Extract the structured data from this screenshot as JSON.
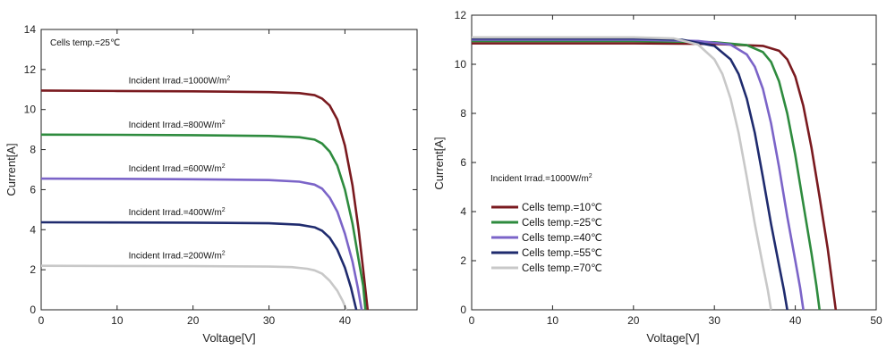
{
  "chart_data": [
    {
      "type": "line",
      "xlabel": "Voltage[V]",
      "ylabel": "Current[A]",
      "xlim": [
        0,
        49.5
      ],
      "ylim": [
        0,
        14
      ],
      "xticks": [
        0,
        10,
        20,
        30,
        40
      ],
      "yticks": [
        0,
        2,
        4,
        6,
        8,
        10,
        12,
        14
      ],
      "annotation": "Cells temp.=25℃",
      "series": [
        {
          "name": "Incident Irrad.=1000W/m",
          "sup": "2",
          "color": "#7a1a1f",
          "points": [
            [
              0,
              10.95
            ],
            [
              10,
              10.93
            ],
            [
              20,
              10.91
            ],
            [
              30,
              10.87
            ],
            [
              34,
              10.82
            ],
            [
              36,
              10.72
            ],
            [
              37,
              10.55
            ],
            [
              38,
              10.2
            ],
            [
              39,
              9.5
            ],
            [
              40,
              8.2
            ],
            [
              41,
              6.2
            ],
            [
              41.8,
              4.0
            ],
            [
              42.4,
              2.0
            ],
            [
              43,
              0
            ]
          ]
        },
        {
          "name": "Incident Irrad.=800W/m",
          "sup": "2",
          "color": "#2e8b3e",
          "points": [
            [
              0,
              8.75
            ],
            [
              10,
              8.74
            ],
            [
              20,
              8.72
            ],
            [
              30,
              8.68
            ],
            [
              34,
              8.62
            ],
            [
              36,
              8.5
            ],
            [
              37,
              8.3
            ],
            [
              38,
              7.9
            ],
            [
              39,
              7.2
            ],
            [
              40,
              6.0
            ],
            [
              41,
              4.3
            ],
            [
              41.8,
              2.5
            ],
            [
              42.4,
              1.2
            ],
            [
              42.7,
              0
            ]
          ]
        },
        {
          "name": "Incident Irrad.=600W/m",
          "sup": "2",
          "color": "#7b64c8",
          "points": [
            [
              0,
              6.55
            ],
            [
              10,
              6.54
            ],
            [
              20,
              6.52
            ],
            [
              30,
              6.48
            ],
            [
              34,
              6.4
            ],
            [
              36,
              6.25
            ],
            [
              37,
              6.05
            ],
            [
              38,
              5.6
            ],
            [
              39,
              4.9
            ],
            [
              40,
              3.8
            ],
            [
              41,
              2.4
            ],
            [
              41.7,
              1.1
            ],
            [
              42.2,
              0
            ]
          ]
        },
        {
          "name": "Incident Irrad.=400W/m",
          "sup": "2",
          "color": "#1f2b6e",
          "points": [
            [
              0,
              4.37
            ],
            [
              10,
              4.36
            ],
            [
              20,
              4.35
            ],
            [
              30,
              4.32
            ],
            [
              34,
              4.25
            ],
            [
              36,
              4.12
            ],
            [
              37,
              3.95
            ],
            [
              38,
              3.6
            ],
            [
              39,
              3.0
            ],
            [
              40,
              2.1
            ],
            [
              40.8,
              1.1
            ],
            [
              41.5,
              0
            ]
          ]
        },
        {
          "name": "Incident Irrad.=200W/m",
          "sup": "2",
          "color": "#c8c8c8",
          "points": [
            [
              0,
              2.2
            ],
            [
              10,
              2.19
            ],
            [
              20,
              2.18
            ],
            [
              30,
              2.16
            ],
            [
              33,
              2.13
            ],
            [
              35,
              2.05
            ],
            [
              36,
              1.97
            ],
            [
              37,
              1.8
            ],
            [
              38,
              1.45
            ],
            [
              39,
              0.95
            ],
            [
              39.7,
              0.45
            ],
            [
              40.2,
              0
            ]
          ]
        }
      ]
    },
    {
      "type": "line",
      "xlabel": "Voltage[V]",
      "ylabel": "Current[A]",
      "xlim": [
        0,
        50
      ],
      "ylim": [
        0,
        12
      ],
      "xticks": [
        0,
        10,
        20,
        30,
        40,
        50
      ],
      "yticks": [
        0,
        2,
        4,
        6,
        8,
        10,
        12
      ],
      "annotation": "Incident Irrad.=1000W/m",
      "annotation_sup": "2",
      "legend_position": "lower-left",
      "series": [
        {
          "name": "Cells temp.=10℃",
          "color": "#7a1a1f",
          "points": [
            [
              0,
              10.85
            ],
            [
              20,
              10.85
            ],
            [
              30,
              10.83
            ],
            [
              36,
              10.75
            ],
            [
              38,
              10.55
            ],
            [
              39,
              10.2
            ],
            [
              40,
              9.5
            ],
            [
              41,
              8.3
            ],
            [
              42,
              6.6
            ],
            [
              43,
              4.6
            ],
            [
              44,
              2.5
            ],
            [
              44.6,
              1.0
            ],
            [
              45,
              0
            ]
          ]
        },
        {
          "name": "Cells temp.=25℃",
          "color": "#2e8b3e",
          "points": [
            [
              0,
              10.95
            ],
            [
              20,
              10.95
            ],
            [
              30,
              10.9
            ],
            [
              34,
              10.78
            ],
            [
              36,
              10.5
            ],
            [
              37,
              10.1
            ],
            [
              38,
              9.3
            ],
            [
              39,
              8.0
            ],
            [
              40,
              6.3
            ],
            [
              41,
              4.3
            ],
            [
              42,
              2.3
            ],
            [
              42.6,
              1.0
            ],
            [
              43,
              0
            ]
          ]
        },
        {
          "name": "Cells temp.=40℃",
          "color": "#7b64c8",
          "points": [
            [
              0,
              11.0
            ],
            [
              20,
              11.0
            ],
            [
              28,
              10.95
            ],
            [
              32,
              10.8
            ],
            [
              34,
              10.4
            ],
            [
              35,
              9.9
            ],
            [
              36,
              9.0
            ],
            [
              37,
              7.6
            ],
            [
              38,
              5.8
            ],
            [
              39,
              3.8
            ],
            [
              40,
              2.0
            ],
            [
              40.6,
              0.9
            ],
            [
              41,
              0
            ]
          ]
        },
        {
          "name": "Cells temp.=55℃",
          "color": "#1f2b6e",
          "points": [
            [
              0,
              11.05
            ],
            [
              20,
              11.05
            ],
            [
              26,
              11.0
            ],
            [
              30,
              10.75
            ],
            [
              32,
              10.2
            ],
            [
              33,
              9.6
            ],
            [
              34,
              8.6
            ],
            [
              35,
              7.2
            ],
            [
              36,
              5.4
            ],
            [
              37,
              3.5
            ],
            [
              38,
              1.8
            ],
            [
              38.6,
              0.8
            ],
            [
              39,
              0
            ]
          ]
        },
        {
          "name": "Cells temp.=70℃",
          "color": "#c8c8c8",
          "points": [
            [
              0,
              11.1
            ],
            [
              20,
              11.1
            ],
            [
              25,
              11.05
            ],
            [
              28,
              10.8
            ],
            [
              30,
              10.2
            ],
            [
              31,
              9.6
            ],
            [
              32,
              8.6
            ],
            [
              33,
              7.2
            ],
            [
              34,
              5.4
            ],
            [
              35,
              3.5
            ],
            [
              36,
              1.8
            ],
            [
              36.6,
              0.8
            ],
            [
              37,
              0
            ]
          ]
        }
      ]
    }
  ]
}
